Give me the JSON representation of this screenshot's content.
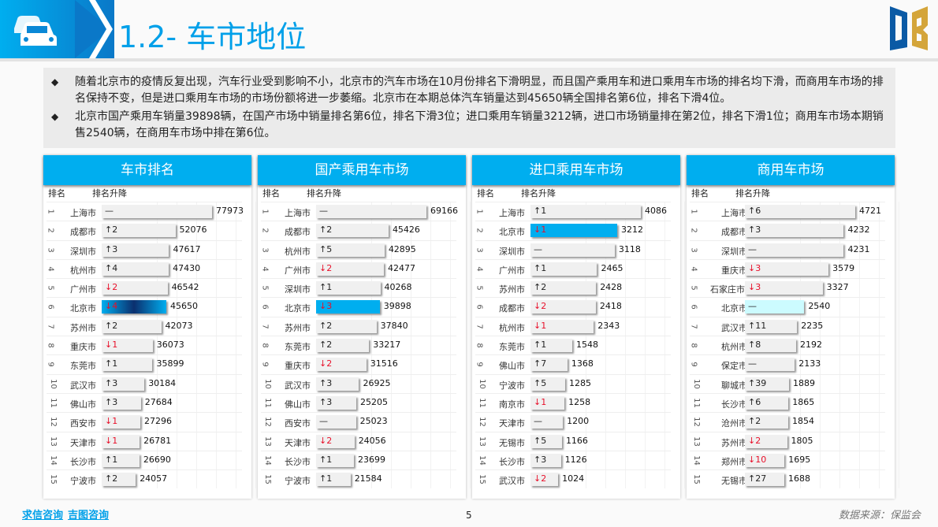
{
  "header": {
    "title": "1.2- 车市地位"
  },
  "summary": [
    "随着北京市的疫情反复出现，汽车行业受到影响不小，北京市的汽车市场在10月份排名下滑明显，而且国产乘用车和进口乘用车市场的排名均下滑，而商用车市场的排名保持不变，但是进口乘用车市场的市场份额将进一步萎缩。北京市在本期总体汽车销量达到45650辆全国排名第6位，排名下滑4位。",
    "北京市国产乘用车销量39898辆，在国产市场中销量排名第6位，排名下滑3位；进口乘用车销量3212辆，进口市场销量排在第2位，排名下滑1位；商用车市场本期销售2540辆，在商用车市场中排在第6位。"
  ],
  "colors": {
    "accent": "#00aeef",
    "down": "#e8102a",
    "highlight1": "#00aeef",
    "highlight4": "#ccfbff"
  },
  "col_rank": "排名",
  "col_change": "排名升降",
  "panels": [
    {
      "title": "车市排名",
      "rows": [
        [
          "1",
          "上海市",
          "none",
          "",
          77973
        ],
        [
          "2",
          "成都市",
          "up",
          "2",
          52076
        ],
        [
          "3",
          "深圳市",
          "up",
          "3",
          47617
        ],
        [
          "4",
          "杭州市",
          "up",
          "4",
          47430
        ],
        [
          "5",
          "广州市",
          "down",
          "2",
          46542
        ],
        [
          "6",
          "北京市",
          "down",
          "4",
          45650
        ],
        [
          "7",
          "苏州市",
          "up",
          "2",
          42073
        ],
        [
          "8",
          "重庆市",
          "down",
          "1",
          36073
        ],
        [
          "9",
          "东莞市",
          "up",
          "1",
          35899
        ],
        [
          "10",
          "武汉市",
          "up",
          "3",
          30184
        ],
        [
          "11",
          "佛山市",
          "up",
          "3",
          27684
        ],
        [
          "12",
          "西安市",
          "down",
          "1",
          27296
        ],
        [
          "13",
          "天津市",
          "down",
          "1",
          26781
        ],
        [
          "14",
          "长沙市",
          "up",
          "1",
          26690
        ],
        [
          "15",
          "宁波市",
          "up",
          "2",
          24057
        ]
      ]
    },
    {
      "title": "国产乘用车市场",
      "rows": [
        [
          "1",
          "上海市",
          "none",
          "",
          69166
        ],
        [
          "2",
          "成都市",
          "up",
          "2",
          45426
        ],
        [
          "3",
          "杭州市",
          "up",
          "5",
          42895
        ],
        [
          "4",
          "广州市",
          "down",
          "2",
          42477
        ],
        [
          "5",
          "深圳市",
          "up",
          "1",
          40268
        ],
        [
          "6",
          "北京市",
          "down",
          "3",
          39898
        ],
        [
          "7",
          "苏州市",
          "up",
          "2",
          37840
        ],
        [
          "8",
          "东莞市",
          "up",
          "2",
          33217
        ],
        [
          "9",
          "重庆市",
          "down",
          "2",
          31516
        ],
        [
          "10",
          "武汉市",
          "up",
          "3",
          26925
        ],
        [
          "11",
          "佛山市",
          "up",
          "3",
          25205
        ],
        [
          "12",
          "西安市",
          "none",
          "",
          25023
        ],
        [
          "13",
          "天津市",
          "down",
          "2",
          24056
        ],
        [
          "14",
          "长沙市",
          "up",
          "1",
          23699
        ],
        [
          "15",
          "宁波市",
          "up",
          "1",
          21584
        ]
      ]
    },
    {
      "title": "进口乘用车市场",
      "rows": [
        [
          "1",
          "上海市",
          "up",
          "1",
          4086
        ],
        [
          "2",
          "北京市",
          "down",
          "1",
          3212
        ],
        [
          "3",
          "深圳市",
          "none",
          "",
          3118
        ],
        [
          "4",
          "广州市",
          "up",
          "1",
          2465
        ],
        [
          "5",
          "苏州市",
          "up",
          "2",
          2428
        ],
        [
          "6",
          "成都市",
          "down",
          "2",
          2418
        ],
        [
          "7",
          "杭州市",
          "down",
          "1",
          2343
        ],
        [
          "8",
          "东莞市",
          "up",
          "1",
          1548
        ],
        [
          "9",
          "佛山市",
          "up",
          "7",
          1368
        ],
        [
          "10",
          "宁波市",
          "up",
          "5",
          1285
        ],
        [
          "11",
          "南京市",
          "down",
          "1",
          1258
        ],
        [
          "12",
          "天津市",
          "none",
          "",
          1200
        ],
        [
          "13",
          "无锡市",
          "up",
          "5",
          1166
        ],
        [
          "14",
          "长沙市",
          "up",
          "3",
          1126
        ],
        [
          "15",
          "武汉市",
          "down",
          "2",
          1024
        ]
      ]
    },
    {
      "title": "商用车市场",
      "rows": [
        [
          "1",
          "上海市",
          "up",
          "6",
          4721
        ],
        [
          "2",
          "成都市",
          "up",
          "3",
          4232
        ],
        [
          "3",
          "深圳市",
          "none",
          "",
          4231
        ],
        [
          "4",
          "重庆市",
          "down",
          "3",
          3579
        ],
        [
          "5",
          "石家庄市",
          "down",
          "3",
          3327
        ],
        [
          "6",
          "北京市",
          "none",
          "",
          2540
        ],
        [
          "7",
          "武汉市",
          "up",
          "11",
          2235
        ],
        [
          "8",
          "杭州市",
          "up",
          "8",
          2192
        ],
        [
          "9",
          "保定市",
          "none",
          "",
          2133
        ],
        [
          "10",
          "聊城市",
          "up",
          "39",
          1889
        ],
        [
          "11",
          "长沙市",
          "up",
          "6",
          1865
        ],
        [
          "12",
          "沧州市",
          "up",
          "2",
          1854
        ],
        [
          "13",
          "苏州市",
          "down",
          "2",
          1805
        ],
        [
          "14",
          "郑州市",
          "down",
          "10",
          1695
        ],
        [
          "15",
          "无锡市",
          "up",
          "27",
          1688
        ]
      ]
    }
  ],
  "footer": {
    "link1": "求信咨询",
    "link2": "吉图咨询",
    "page": "5",
    "source": "数据来源：保监会"
  }
}
